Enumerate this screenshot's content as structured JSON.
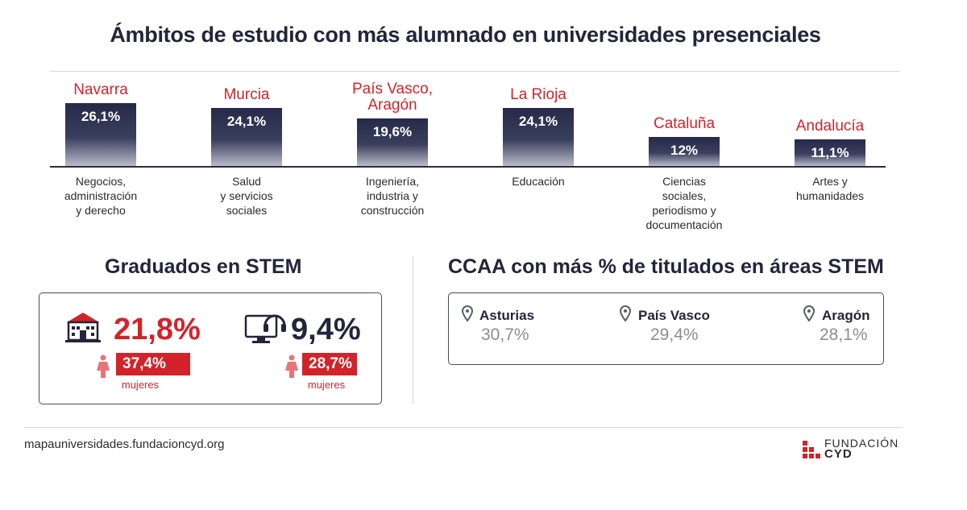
{
  "title": "Ámbitos de estudio con más alumnado en universidades presenciales",
  "chart_data": {
    "type": "bar",
    "categories": [
      "Negocios,\nadministración\ny derecho",
      "Salud\ny servicios\nsociales",
      "Ingeniería,\nindustria y\nconstrucción",
      "Educación",
      "Ciencias\nsociales,\nperiodismo y\ndocumentación",
      "Artes y\nhumanidades"
    ],
    "region_labels": [
      "Navarra",
      "Murcia",
      "País Vasco,\nAragón",
      "La Rioja",
      "Cataluña",
      "Andalucía"
    ],
    "values": [
      26.1,
      24.1,
      19.6,
      24.1,
      12,
      11.1
    ],
    "value_labels": [
      "26,1%",
      "24,1%",
      "19,6%",
      "24,1%",
      "12%",
      "11,1%"
    ],
    "bar_color": "#262a48",
    "region_color": "#d2232a"
  },
  "stem_graduates": {
    "title": "Graduados en STEM",
    "items": [
      {
        "icon": "university-building-icon",
        "value": "21,8%",
        "women_pct": "37,4%",
        "women_label": "mujeres"
      },
      {
        "icon": "computer-headset-icon",
        "value": "9,4%",
        "women_pct": "28,7%",
        "women_label": "mujeres"
      }
    ]
  },
  "ccaa_stem": {
    "title": "CCAA con más % de titulados en áreas STEM",
    "items": [
      {
        "name": "Asturias",
        "value": "30,7%"
      },
      {
        "name": "País Vasco",
        "value": "29,4%"
      },
      {
        "name": "Aragón",
        "value": "28,1%"
      }
    ]
  },
  "footer": {
    "url": "mapauniversidades.fundacioncyd.org",
    "logo_line1": "FUNDACIÓN",
    "logo_line2": "CYD"
  },
  "colors": {
    "accent": "#d2232a",
    "navy": "#23253a",
    "grey_value": "#8e8e8e"
  }
}
